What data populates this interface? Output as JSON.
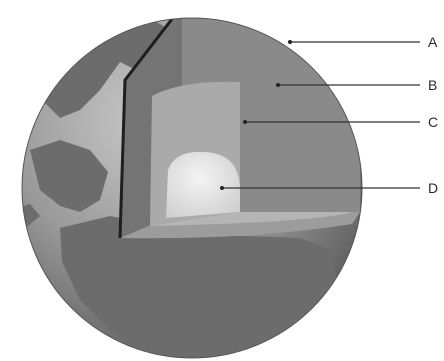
{
  "labels": [
    {
      "id": "A",
      "text": "A"
    },
    {
      "id": "B",
      "text": "B"
    },
    {
      "id": "C",
      "text": "C"
    },
    {
      "id": "D",
      "text": "D"
    }
  ],
  "colors": {
    "background": "#ffffff",
    "ocean": "#9b9b9b",
    "land": "#6f6f6f",
    "crust": "#7a7a7a",
    "mantle": "#8e8e8e",
    "outer_core": "#b2b2b2",
    "inner_core": "#dedede",
    "cut_edge": "#1e1e1e",
    "leader_line": "#333333"
  }
}
